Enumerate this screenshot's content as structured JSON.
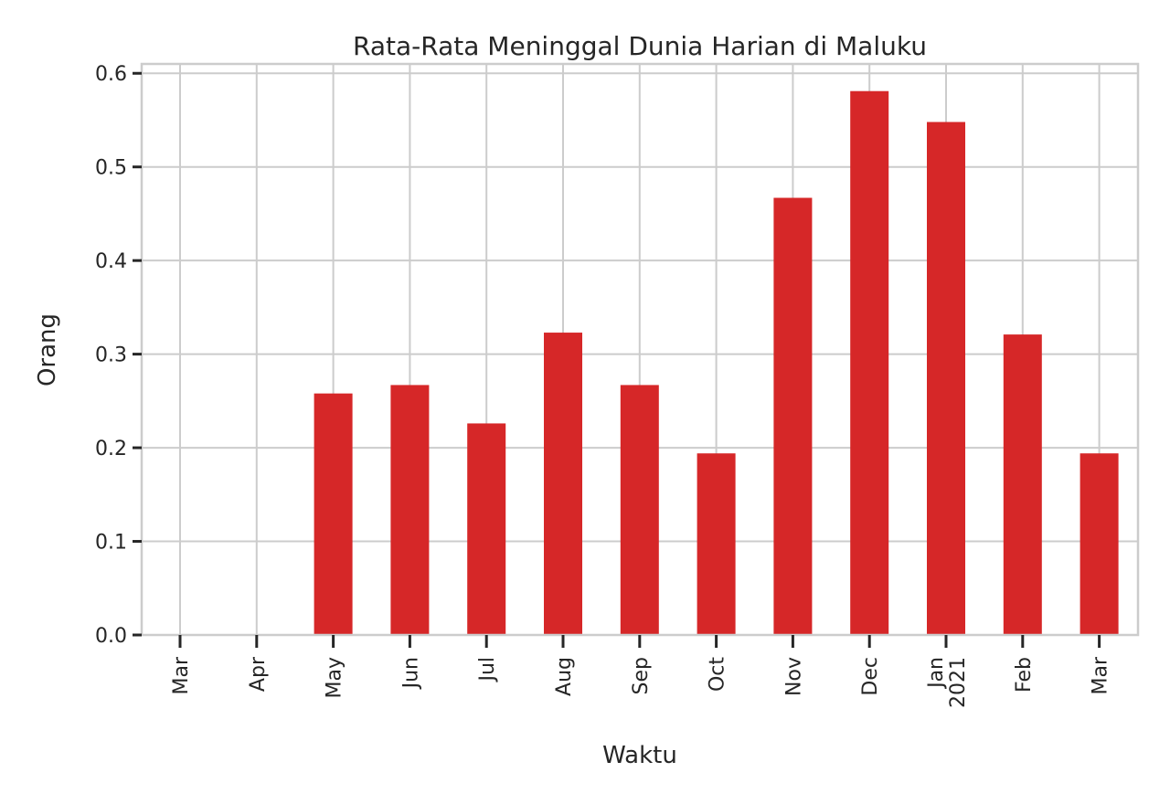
{
  "chart_data": {
    "type": "bar",
    "title": "Rata-Rata Meninggal Dunia Harian di Maluku",
    "xlabel": "Waktu",
    "ylabel": "Orang",
    "categories": [
      "Mar",
      "Apr",
      "May",
      "Jun",
      "Jul",
      "Aug",
      "Sep",
      "Oct",
      "Nov",
      "Dec",
      "Jan\n2021",
      "Feb",
      "Mar"
    ],
    "values": [
      0.0,
      0.0,
      0.258,
      0.267,
      0.226,
      0.323,
      0.267,
      0.194,
      0.467,
      0.581,
      0.548,
      0.321,
      0.194
    ],
    "ylim": [
      0,
      0.61
    ],
    "yticks": [
      0.0,
      0.1,
      0.2,
      0.3,
      0.4,
      0.5,
      0.6
    ],
    "ytick_labels": [
      "0.0",
      "0.1",
      "0.2",
      "0.3",
      "0.4",
      "0.5",
      "0.6"
    ],
    "grid": true,
    "legend": "none",
    "colors": {
      "bar": "#d62728",
      "grid": "#cccccc",
      "text": "#262626"
    }
  }
}
